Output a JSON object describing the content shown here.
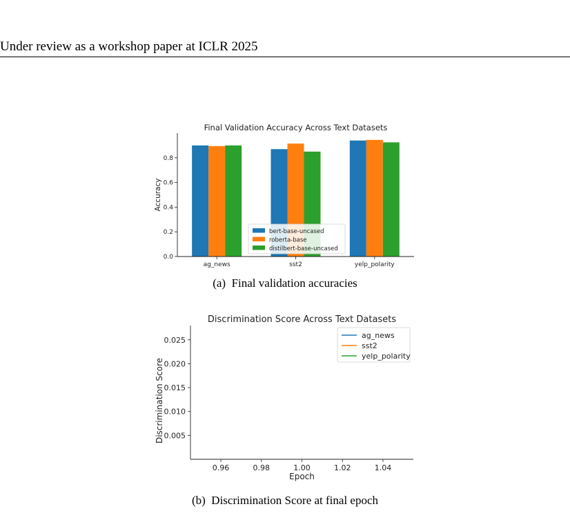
{
  "header": {
    "running_title": "Under review as a workshop paper at ICLR 2025"
  },
  "figure_a": {
    "caption": "(a) Final validation accuracies",
    "chart_data": {
      "type": "bar",
      "title": "Final Validation Accuracy Across Text Datasets",
      "xlabel": "",
      "ylabel": "Accuracy",
      "categories": [
        "ag_news",
        "sst2",
        "yelp_polarity"
      ],
      "ylim": [
        0,
        1.0
      ],
      "yticks": [
        "0.0",
        "0.2",
        "0.4",
        "0.6",
        "0.8"
      ],
      "legend_position": "bottom-center",
      "series": [
        {
          "name": "bert-base-uncased",
          "color": "#1f77b4",
          "values": [
            0.9,
            0.87,
            0.94
          ]
        },
        {
          "name": "roberta-base",
          "color": "#ff7f0e",
          "values": [
            0.895,
            0.915,
            0.945
          ]
        },
        {
          "name": "distilbert-base-uncased",
          "color": "#2ca02c",
          "values": [
            0.9,
            0.85,
            0.925
          ]
        }
      ]
    }
  },
  "figure_b": {
    "caption": "(b) Discrimination Score at final epoch",
    "chart_data": {
      "type": "line",
      "title": "Discrimination Score Across Text Datasets",
      "xlabel": "Epoch",
      "ylabel": "Discrimination Score",
      "xlim": [
        0.945,
        1.055
      ],
      "ylim": [
        0.0,
        0.028
      ],
      "xticks": [
        "0.96",
        "0.98",
        "1.00",
        "1.02",
        "1.04"
      ],
      "yticks": [
        "0.005",
        "0.010",
        "0.015",
        "0.020",
        "0.025"
      ],
      "legend_position": "top-right",
      "series": [
        {
          "name": "ag_news",
          "color": "#1f77b4",
          "x": [],
          "y": []
        },
        {
          "name": "sst2",
          "color": "#ff7f0e",
          "x": [],
          "y": []
        },
        {
          "name": "yelp_polarity",
          "color": "#2ca02c",
          "x": [],
          "y": []
        }
      ]
    }
  }
}
